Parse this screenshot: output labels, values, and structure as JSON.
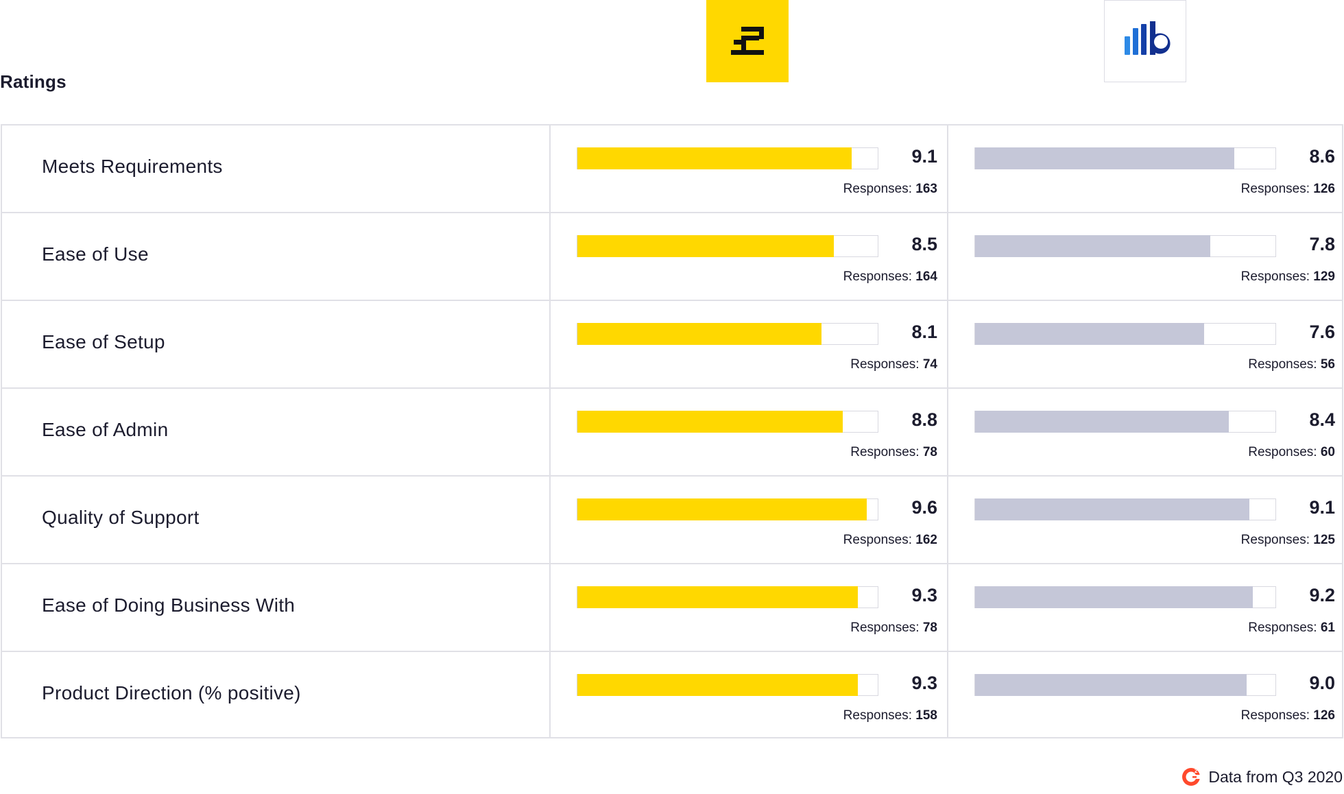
{
  "section_title": "Ratings",
  "products": [
    {
      "logo_icon": "yellow-e-logo-icon",
      "color": "#FFD800"
    },
    {
      "logo_icon": "blue-bars-b-logo-icon",
      "color": "#c5c7d8"
    }
  ],
  "responses_label": "Responses:",
  "footer": {
    "text": "Data from Q3 2020",
    "icon": "g2-logo-icon"
  },
  "chart_data": {
    "type": "bar",
    "title": "Ratings",
    "xlim": [
      0,
      10
    ],
    "categories": [
      "Meets Requirements",
      "Ease of Use",
      "Ease of Setup",
      "Ease of Admin",
      "Quality of Support",
      "Ease of Doing Business With",
      "Product Direction (% positive)"
    ],
    "series": [
      {
        "values": [
          9.1,
          8.5,
          8.1,
          8.8,
          9.6,
          9.3,
          9.3
        ],
        "labels": [
          "9.1",
          "8.5",
          "8.1",
          "8.8",
          "9.6",
          "9.3",
          "9.3"
        ],
        "responses": [
          163,
          164,
          74,
          78,
          162,
          78,
          158
        ]
      },
      {
        "values": [
          8.6,
          7.8,
          7.6,
          8.4,
          9.1,
          9.2,
          9.0
        ],
        "labels": [
          "8.6",
          "7.8",
          "7.6",
          "8.4",
          "9.1",
          "9.2",
          "9.0"
        ],
        "responses": [
          126,
          129,
          56,
          60,
          125,
          61,
          126
        ]
      }
    ]
  }
}
